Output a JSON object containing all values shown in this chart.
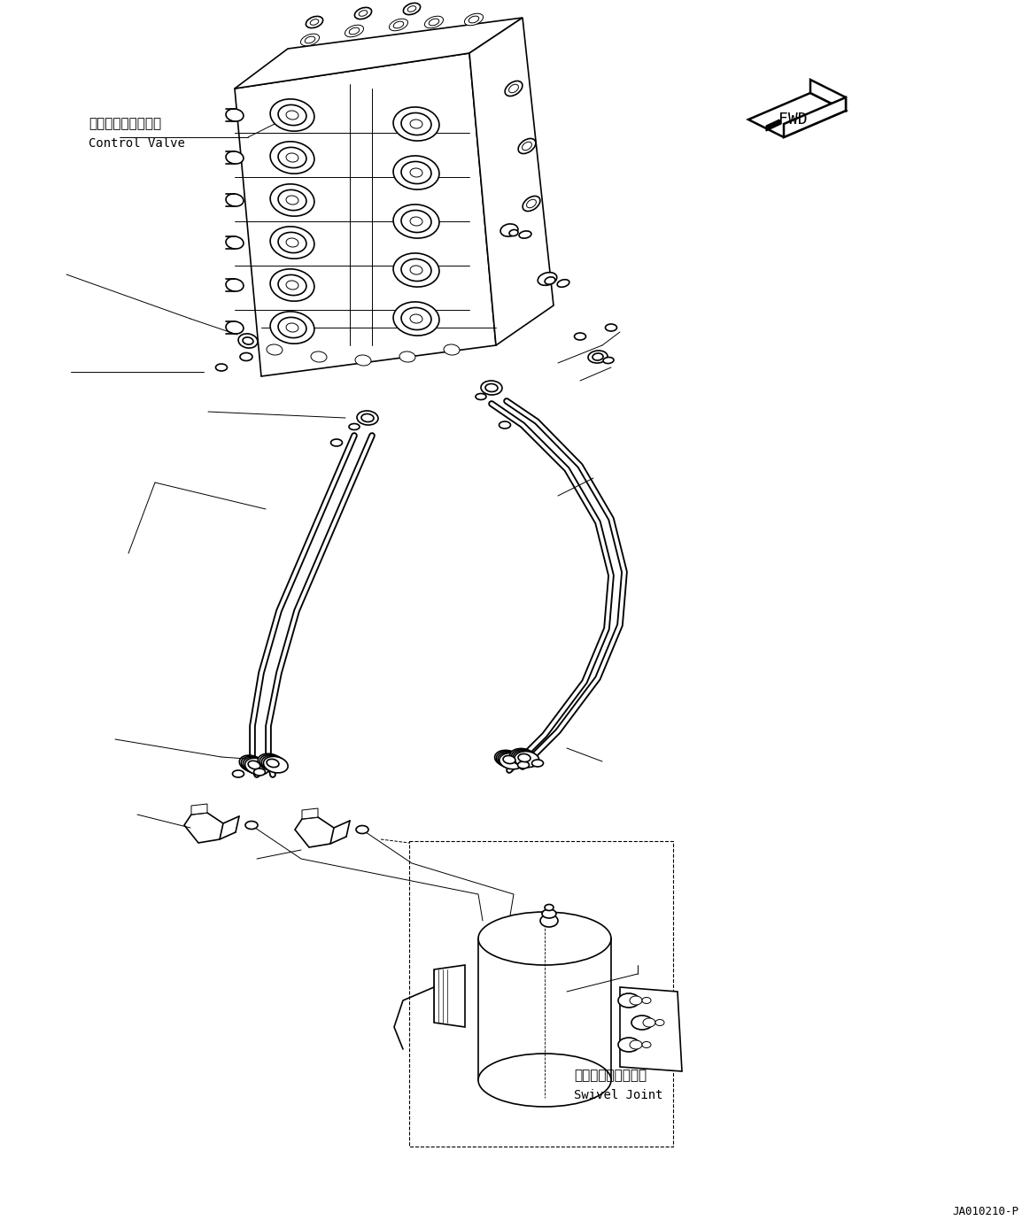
{
  "background_color": "#ffffff",
  "line_color": "#000000",
  "fig_width": 11.63,
  "fig_height": 13.87,
  "dpi": 100,
  "label_control_valve_jp": "コントロールバルブ",
  "label_control_valve_en": "Control Valve",
  "label_swivel_joint_jp": "スイベルジョイント",
  "label_swivel_joint_en": "Swivel Joint",
  "label_fwd": "FWD",
  "label_code": "JA010210-P",
  "lw_thick": 1.8,
  "lw_med": 1.2,
  "lw_thin": 0.7,
  "lw_pipe": 4.0,
  "lw_anno": 0.7
}
